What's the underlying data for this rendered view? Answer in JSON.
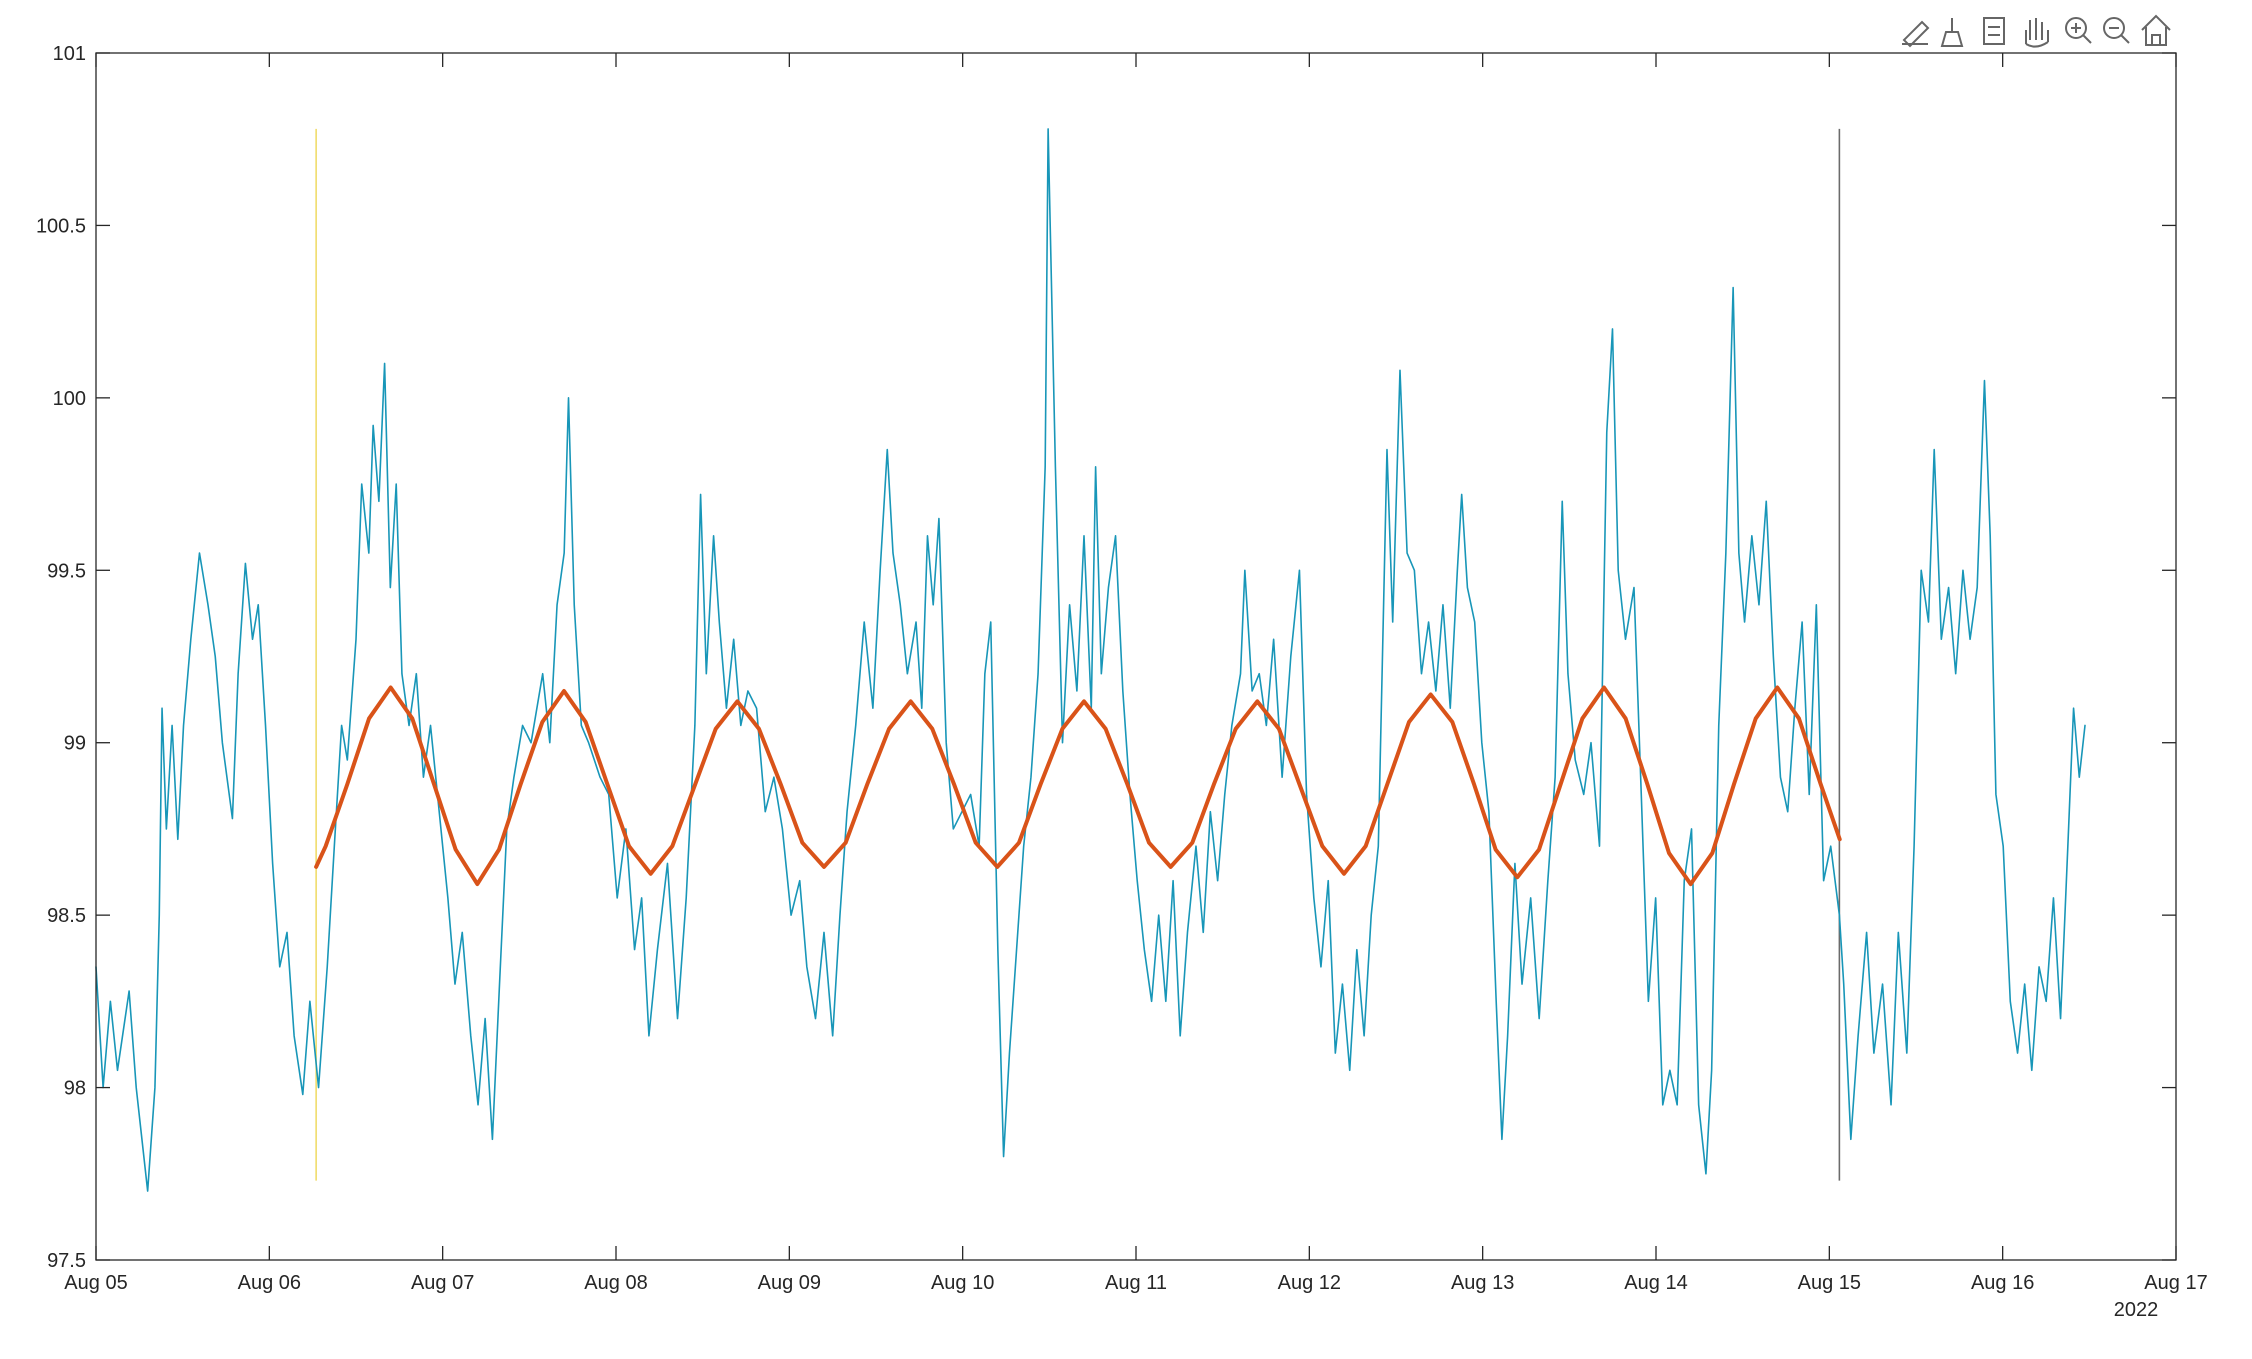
{
  "chart_data": {
    "type": "line",
    "xlim": [
      0,
      12
    ],
    "xticks": [
      {
        "value": 0,
        "label": "Aug 05"
      },
      {
        "value": 1,
        "label": "Aug 06"
      },
      {
        "value": 2,
        "label": "Aug 07"
      },
      {
        "value": 3,
        "label": "Aug 08"
      },
      {
        "value": 4,
        "label": "Aug 09"
      },
      {
        "value": 5,
        "label": "Aug 10"
      },
      {
        "value": 6,
        "label": "Aug 11"
      },
      {
        "value": 7,
        "label": "Aug 12"
      },
      {
        "value": 8,
        "label": "Aug 13"
      },
      {
        "value": 9,
        "label": "Aug 14"
      },
      {
        "value": 10,
        "label": "Aug 15"
      },
      {
        "value": 11,
        "label": "Aug 16"
      },
      {
        "value": 12,
        "label": "Aug 17"
      }
    ],
    "x_secondary_label": "2022",
    "ylim": [
      97.5,
      101
    ],
    "yticks": [
      97.5,
      98,
      98.5,
      99,
      99.5,
      100,
      100.5,
      101
    ],
    "grid": false,
    "vlines": [
      {
        "x": 1.27,
        "y": [
          97.73,
          100.78
        ],
        "color": "#f0dc6a"
      },
      {
        "x": 10.058,
        "y": [
          97.73,
          100.78
        ],
        "color": "#6b6b6b"
      }
    ],
    "series": [
      {
        "color": "#1896b8",
        "x": [
          0,
          0.041,
          0.083,
          0.124,
          0.191,
          0.232,
          0.298,
          0.34,
          0.365,
          0.381,
          0.406,
          0.439,
          0.472,
          0.505,
          0.547,
          0.597,
          0.646,
          0.688,
          0.729,
          0.787,
          0.82,
          0.862,
          0.903,
          0.936,
          0.978,
          1.019,
          1.06,
          1.102,
          1.143,
          1.193,
          1.234,
          1.284,
          1.334,
          1.375,
          1.417,
          1.45,
          1.5,
          1.533,
          1.574,
          1.599,
          1.632,
          1.665,
          1.698,
          1.732,
          1.765,
          1.806,
          1.848,
          1.889,
          1.93,
          1.98,
          2.03,
          2.071,
          2.113,
          2.162,
          2.204,
          2.245,
          2.287,
          2.328,
          2.37,
          2.411,
          2.461,
          2.51,
          2.577,
          2.618,
          2.66,
          2.701,
          2.726,
          2.759,
          2.8,
          2.842,
          2.908,
          2.958,
          3.007,
          3.057,
          3.107,
          3.148,
          3.19,
          3.239,
          3.297,
          3.355,
          3.405,
          3.455,
          3.488,
          3.521,
          3.563,
          3.596,
          3.637,
          3.679,
          3.72,
          3.761,
          3.811,
          3.861,
          3.911,
          3.96,
          4.01,
          4.06,
          4.101,
          4.151,
          4.2,
          4.25,
          4.292,
          4.333,
          4.383,
          4.432,
          4.482,
          4.524,
          4.565,
          4.598,
          4.64,
          4.681,
          4.731,
          4.764,
          4.797,
          4.83,
          4.863,
          4.905,
          4.946,
          4.996,
          5.046,
          5.095,
          5.128,
          5.162,
          5.203,
          5.236,
          5.27,
          5.311,
          5.352,
          5.394,
          5.435,
          5.476,
          5.493,
          5.535,
          5.576,
          5.617,
          5.659,
          5.7,
          5.742,
          5.767,
          5.8,
          5.841,
          5.882,
          5.924,
          5.965,
          6.007,
          6.048,
          6.09,
          6.131,
          6.172,
          6.214,
          6.255,
          6.297,
          6.346,
          6.388,
          6.429,
          6.471,
          6.512,
          6.553,
          6.603,
          6.628,
          6.67,
          6.711,
          6.752,
          6.794,
          6.843,
          6.893,
          6.943,
          6.984,
          7.026,
          7.067,
          7.109,
          7.15,
          7.191,
          7.233,
          7.274,
          7.316,
          7.357,
          7.398,
          7.448,
          7.481,
          7.523,
          7.564,
          7.606,
          7.647,
          7.688,
          7.73,
          7.771,
          7.813,
          7.854,
          7.879,
          7.912,
          7.954,
          7.995,
          8.036,
          8.078,
          8.111,
          8.144,
          8.186,
          8.227,
          8.277,
          8.326,
          8.376,
          8.418,
          8.459,
          8.492,
          8.534,
          8.583,
          8.625,
          8.674,
          8.716,
          8.749,
          8.782,
          8.824,
          8.873,
          8.915,
          8.956,
          8.998,
          9.039,
          9.08,
          9.122,
          9.163,
          9.205,
          9.246,
          9.288,
          9.321,
          9.362,
          9.403,
          9.445,
          9.478,
          9.511,
          9.553,
          9.594,
          9.636,
          9.677,
          9.718,
          9.76,
          9.801,
          9.843,
          9.884,
          9.925,
          9.967,
          10.008,
          10.058,
          10.083,
          10.124,
          10.166,
          10.215,
          10.257,
          10.307,
          10.356,
          10.398,
          10.447,
          10.489,
          10.53,
          10.572,
          10.605,
          10.646,
          10.688,
          10.729,
          10.771,
          10.812,
          10.853,
          10.895,
          10.928,
          10.961,
          11.003,
          11.044,
          11.086,
          11.127,
          11.168,
          11.21,
          11.251,
          11.293,
          11.334,
          11.376,
          11.409,
          11.442,
          11.475
        ],
        "values": [
          98.35,
          98.0,
          98.25,
          98.05,
          98.28,
          98.0,
          97.7,
          98.0,
          98.5,
          99.1,
          98.75,
          99.05,
          98.72,
          99.05,
          99.3,
          99.55,
          99.4,
          99.25,
          99.0,
          98.78,
          99.2,
          99.52,
          99.3,
          99.4,
          99.05,
          98.65,
          98.35,
          98.45,
          98.15,
          97.98,
          98.25,
          98.0,
          98.35,
          98.7,
          99.05,
          98.95,
          99.3,
          99.75,
          99.55,
          99.92,
          99.7,
          100.1,
          99.45,
          99.75,
          99.2,
          99.05,
          99.2,
          98.9,
          99.05,
          98.8,
          98.55,
          98.3,
          98.45,
          98.15,
          97.95,
          98.2,
          97.85,
          98.3,
          98.75,
          98.9,
          99.05,
          99.0,
          99.2,
          99.0,
          99.4,
          99.55,
          100.0,
          99.4,
          99.05,
          99.0,
          98.9,
          98.85,
          98.55,
          98.75,
          98.4,
          98.55,
          98.15,
          98.4,
          98.65,
          98.2,
          98.55,
          99.05,
          99.72,
          99.2,
          99.6,
          99.35,
          99.1,
          99.3,
          99.05,
          99.15,
          99.1,
          98.8,
          98.9,
          98.75,
          98.5,
          98.6,
          98.35,
          98.2,
          98.45,
          98.15,
          98.5,
          98.8,
          99.05,
          99.35,
          99.1,
          99.5,
          99.85,
          99.55,
          99.4,
          99.2,
          99.35,
          99.1,
          99.6,
          99.4,
          99.65,
          99.0,
          98.75,
          98.8,
          98.85,
          98.7,
          99.2,
          99.35,
          98.4,
          97.8,
          98.1,
          98.4,
          98.7,
          98.9,
          99.2,
          99.8,
          100.78,
          99.8,
          99.0,
          99.4,
          99.15,
          99.6,
          99.1,
          99.8,
          99.2,
          99.45,
          99.6,
          99.15,
          98.85,
          98.6,
          98.4,
          98.25,
          98.5,
          98.25,
          98.6,
          98.15,
          98.45,
          98.7,
          98.45,
          98.8,
          98.6,
          98.85,
          99.05,
          99.2,
          99.5,
          99.15,
          99.2,
          99.05,
          99.3,
          98.9,
          99.25,
          99.5,
          98.85,
          98.55,
          98.35,
          98.6,
          98.1,
          98.3,
          98.05,
          98.4,
          98.15,
          98.5,
          98.7,
          99.85,
          99.35,
          100.08,
          99.55,
          99.5,
          99.2,
          99.35,
          99.15,
          99.4,
          99.1,
          99.5,
          99.72,
          99.45,
          99.35,
          99.0,
          98.8,
          98.25,
          97.85,
          98.15,
          98.65,
          98.3,
          98.55,
          98.2,
          98.6,
          98.9,
          99.7,
          99.2,
          98.95,
          98.85,
          99.0,
          98.7,
          99.9,
          100.2,
          99.5,
          99.3,
          99.45,
          98.85,
          98.25,
          98.55,
          97.95,
          98.05,
          97.95,
          98.6,
          98.75,
          97.95,
          97.75,
          98.05,
          99.05,
          99.55,
          100.32,
          99.55,
          99.35,
          99.6,
          99.4,
          99.7,
          99.25,
          98.9,
          98.8,
          99.1,
          99.35,
          98.85,
          99.4,
          98.6,
          98.7,
          98.5,
          98.3,
          97.85,
          98.15,
          98.45,
          98.1,
          98.3,
          97.95,
          98.45,
          98.1,
          98.7,
          99.5,
          99.35,
          99.85,
          99.3,
          99.45,
          99.2,
          99.5,
          99.3,
          99.45,
          100.05,
          99.6,
          98.85,
          98.7,
          98.25,
          98.1,
          98.3,
          98.05,
          98.35,
          98.25,
          98.55,
          98.2,
          98.7,
          99.1,
          98.9,
          99.05
        ]
      },
      {
        "color": "#d95319",
        "x": [
          1.27,
          1.325,
          1.45,
          1.575,
          1.7,
          1.825,
          1.95,
          2.075,
          2.2,
          2.325,
          2.45,
          2.575,
          2.7,
          2.825,
          2.95,
          3.075,
          3.2,
          3.325,
          3.45,
          3.575,
          3.7,
          3.825,
          3.95,
          4.075,
          4.2,
          4.325,
          4.45,
          4.575,
          4.7,
          4.825,
          4.95,
          5.075,
          5.2,
          5.325,
          5.45,
          5.575,
          5.7,
          5.825,
          5.95,
          6.075,
          6.2,
          6.325,
          6.45,
          6.575,
          6.7,
          6.825,
          6.95,
          7.075,
          7.2,
          7.325,
          7.45,
          7.575,
          7.7,
          7.825,
          7.95,
          8.075,
          8.2,
          8.325,
          8.45,
          8.575,
          8.7,
          8.825,
          8.95,
          9.075,
          9.2,
          9.325,
          9.45,
          9.575,
          9.7,
          9.825,
          9.95,
          10.06
        ],
        "values": [
          98.64,
          98.7,
          98.88,
          99.07,
          99.16,
          99.07,
          98.88,
          98.69,
          98.59,
          98.69,
          98.88,
          99.06,
          99.15,
          99.06,
          98.88,
          98.7,
          98.62,
          98.7,
          98.87,
          99.04,
          99.12,
          99.04,
          98.88,
          98.71,
          98.64,
          98.71,
          98.88,
          99.04,
          99.12,
          99.04,
          98.88,
          98.71,
          98.64,
          98.71,
          98.88,
          99.04,
          99.12,
          99.04,
          98.88,
          98.71,
          98.64,
          98.71,
          98.88,
          99.04,
          99.12,
          99.04,
          98.87,
          98.7,
          98.62,
          98.7,
          98.88,
          99.06,
          99.14,
          99.06,
          98.88,
          98.69,
          98.61,
          98.69,
          98.88,
          99.07,
          99.16,
          99.07,
          98.88,
          98.68,
          98.59,
          98.68,
          98.88,
          99.07,
          99.16,
          99.07,
          98.88,
          98.72
        ]
      }
    ]
  }
}
